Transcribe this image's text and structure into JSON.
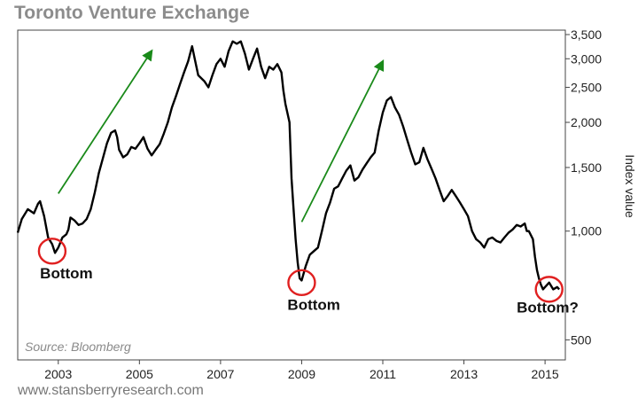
{
  "chart_data": {
    "type": "line",
    "title": "Toronto Venture Exchange",
    "ylabel": "Index value",
    "source": "Source: Bloomberg",
    "footer": "www.stansberryresearch.com",
    "yscale": "log",
    "ylim": [
      440,
      3600
    ],
    "xlim": [
      2002.0,
      2015.5
    ],
    "x_ticks": [
      {
        "value": 2003,
        "label": "2003"
      },
      {
        "value": 2005,
        "label": "2005"
      },
      {
        "value": 2007,
        "label": "2007"
      },
      {
        "value": 2009,
        "label": "2009"
      },
      {
        "value": 2011,
        "label": "2011"
      },
      {
        "value": 2013,
        "label": "2013"
      },
      {
        "value": 2015,
        "label": "2015"
      }
    ],
    "y_ticks": [
      {
        "value": 500,
        "label": "500"
      },
      {
        "value": 1000,
        "label": "1,000"
      },
      {
        "value": 1500,
        "label": "1,500"
      },
      {
        "value": 2000,
        "label": "2,000"
      },
      {
        "value": 2500,
        "label": "2,500"
      },
      {
        "value": 3000,
        "label": "3,000"
      },
      {
        "value": 3500,
        "label": "3,500"
      }
    ],
    "grid": false,
    "legend": "none",
    "series": [
      {
        "color": "#000000",
        "points": [
          [
            2002.0,
            990
          ],
          [
            2002.1,
            1080
          ],
          [
            2002.25,
            1150
          ],
          [
            2002.4,
            1120
          ],
          [
            2002.5,
            1190
          ],
          [
            2002.55,
            1210
          ],
          [
            2002.65,
            1100
          ],
          [
            2002.75,
            960
          ],
          [
            2002.85,
            920
          ],
          [
            2002.92,
            870
          ],
          [
            2003.0,
            900
          ],
          [
            2003.1,
            960
          ],
          [
            2003.2,
            980
          ],
          [
            2003.25,
            1010
          ],
          [
            2003.3,
            1090
          ],
          [
            2003.4,
            1070
          ],
          [
            2003.5,
            1040
          ],
          [
            2003.6,
            1050
          ],
          [
            2003.7,
            1080
          ],
          [
            2003.8,
            1150
          ],
          [
            2003.9,
            1280
          ],
          [
            2004.0,
            1450
          ],
          [
            2004.1,
            1590
          ],
          [
            2004.2,
            1750
          ],
          [
            2004.3,
            1870
          ],
          [
            2004.4,
            1900
          ],
          [
            2004.45,
            1820
          ],
          [
            2004.5,
            1680
          ],
          [
            2004.6,
            1600
          ],
          [
            2004.7,
            1630
          ],
          [
            2004.8,
            1710
          ],
          [
            2004.9,
            1690
          ],
          [
            2005.0,
            1750
          ],
          [
            2005.1,
            1820
          ],
          [
            2005.2,
            1690
          ],
          [
            2005.3,
            1620
          ],
          [
            2005.4,
            1680
          ],
          [
            2005.5,
            1740
          ],
          [
            2005.6,
            1860
          ],
          [
            2005.7,
            2000
          ],
          [
            2005.8,
            2200
          ],
          [
            2005.9,
            2360
          ],
          [
            2006.0,
            2550
          ],
          [
            2006.1,
            2750
          ],
          [
            2006.2,
            2950
          ],
          [
            2006.3,
            3250
          ],
          [
            2006.35,
            3050
          ],
          [
            2006.45,
            2700
          ],
          [
            2006.6,
            2600
          ],
          [
            2006.7,
            2500
          ],
          [
            2006.8,
            2700
          ],
          [
            2006.9,
            2900
          ],
          [
            2007.0,
            3000
          ],
          [
            2007.1,
            2850
          ],
          [
            2007.2,
            3150
          ],
          [
            2007.3,
            3350
          ],
          [
            2007.4,
            3300
          ],
          [
            2007.5,
            3350
          ],
          [
            2007.6,
            3100
          ],
          [
            2007.7,
            2800
          ],
          [
            2007.8,
            3000
          ],
          [
            2007.9,
            3200
          ],
          [
            2008.0,
            2850
          ],
          [
            2008.1,
            2650
          ],
          [
            2008.2,
            2850
          ],
          [
            2008.3,
            2800
          ],
          [
            2008.4,
            2900
          ],
          [
            2008.5,
            2750
          ],
          [
            2008.55,
            2450
          ],
          [
            2008.6,
            2250
          ],
          [
            2008.7,
            2000
          ],
          [
            2008.75,
            1400
          ],
          [
            2008.8,
            1150
          ],
          [
            2008.85,
            950
          ],
          [
            2008.9,
            820
          ],
          [
            2008.95,
            740
          ],
          [
            2009.0,
            730
          ],
          [
            2009.1,
            800
          ],
          [
            2009.2,
            860
          ],
          [
            2009.3,
            880
          ],
          [
            2009.4,
            900
          ],
          [
            2009.5,
            1000
          ],
          [
            2009.6,
            1120
          ],
          [
            2009.7,
            1200
          ],
          [
            2009.8,
            1310
          ],
          [
            2009.9,
            1330
          ],
          [
            2010.0,
            1400
          ],
          [
            2010.1,
            1470
          ],
          [
            2010.2,
            1520
          ],
          [
            2010.3,
            1380
          ],
          [
            2010.4,
            1410
          ],
          [
            2010.5,
            1480
          ],
          [
            2010.6,
            1540
          ],
          [
            2010.7,
            1600
          ],
          [
            2010.8,
            1650
          ],
          [
            2010.9,
            1900
          ],
          [
            2011.0,
            2130
          ],
          [
            2011.1,
            2300
          ],
          [
            2011.2,
            2350
          ],
          [
            2011.3,
            2200
          ],
          [
            2011.4,
            2100
          ],
          [
            2011.5,
            1950
          ],
          [
            2011.6,
            1790
          ],
          [
            2011.7,
            1650
          ],
          [
            2011.8,
            1530
          ],
          [
            2011.9,
            1550
          ],
          [
            2012.0,
            1700
          ],
          [
            2012.1,
            1580
          ],
          [
            2012.2,
            1490
          ],
          [
            2012.3,
            1400
          ],
          [
            2012.4,
            1300
          ],
          [
            2012.5,
            1210
          ],
          [
            2012.6,
            1250
          ],
          [
            2012.7,
            1300
          ],
          [
            2012.8,
            1250
          ],
          [
            2012.9,
            1200
          ],
          [
            2013.0,
            1150
          ],
          [
            2013.1,
            1100
          ],
          [
            2013.2,
            1000
          ],
          [
            2013.3,
            950
          ],
          [
            2013.4,
            930
          ],
          [
            2013.5,
            900
          ],
          [
            2013.6,
            950
          ],
          [
            2013.7,
            960
          ],
          [
            2013.8,
            940
          ],
          [
            2013.9,
            930
          ],
          [
            2014.0,
            960
          ],
          [
            2014.1,
            990
          ],
          [
            2014.2,
            1010
          ],
          [
            2014.3,
            1040
          ],
          [
            2014.4,
            1030
          ],
          [
            2014.5,
            1050
          ],
          [
            2014.55,
            1000
          ],
          [
            2014.6,
            1000
          ],
          [
            2014.7,
            950
          ],
          [
            2014.75,
            850
          ],
          [
            2014.8,
            780
          ],
          [
            2014.85,
            740
          ],
          [
            2014.9,
            710
          ],
          [
            2014.95,
            690
          ],
          [
            2015.0,
            700
          ],
          [
            2015.1,
            720
          ],
          [
            2015.2,
            690
          ],
          [
            2015.3,
            700
          ],
          [
            2015.35,
            690
          ]
        ]
      }
    ],
    "annotations": [
      {
        "type": "circle",
        "x": 2002.85,
        "y": 880,
        "color": "#e02020"
      },
      {
        "type": "circle",
        "x": 2009.0,
        "y": 720,
        "color": "#e02020"
      },
      {
        "type": "circle",
        "x": 2015.1,
        "y": 690,
        "color": "#e02020"
      },
      {
        "type": "arrow",
        "from": [
          2003.0,
          1270
        ],
        "to": [
          2005.3,
          3150
        ],
        "color": "#1a8a1a"
      },
      {
        "type": "arrow",
        "from": [
          2009.0,
          1060
        ],
        "to": [
          2011.0,
          2950
        ],
        "color": "#1a8a1a"
      },
      {
        "type": "label",
        "text": "Bottom",
        "x": 2002.55,
        "y": 740
      },
      {
        "type": "label",
        "text": "Bottom",
        "x": 2008.65,
        "y": 605
      },
      {
        "type": "label",
        "text": "Bottom?",
        "x": 2014.3,
        "y": 595
      }
    ]
  }
}
